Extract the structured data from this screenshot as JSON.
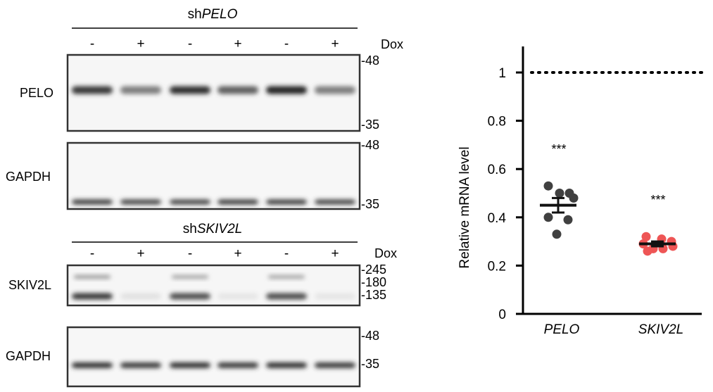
{
  "blot_top": {
    "title_prefix": "sh",
    "title_gene": "PELO",
    "lane_signs": [
      "-",
      "+",
      "-",
      "+",
      "-",
      "+"
    ],
    "treatment": "Dox",
    "panels": [
      {
        "label": "PELO",
        "markers": [
          "-48",
          "-35"
        ],
        "band_intensity": [
          0.9,
          0.55,
          0.95,
          0.7,
          1.0,
          0.55
        ]
      },
      {
        "label": "GAPDH",
        "markers": [
          "-48",
          "-35"
        ],
        "band_intensity": [
          0.9,
          0.85,
          0.85,
          0.9,
          0.9,
          0.85
        ]
      }
    ]
  },
  "blot_bottom": {
    "title_prefix": "sh",
    "title_gene": "SKIV2L",
    "lane_signs": [
      "-",
      "+",
      "-",
      "+",
      "-",
      "+"
    ],
    "treatment": "Dox",
    "panels": [
      {
        "label": "SKIV2L",
        "markers": [
          "-245",
          "-180",
          "-135"
        ],
        "band_intensity": [
          0.9,
          0.05,
          0.8,
          0.03,
          0.8,
          0.03
        ]
      },
      {
        "label": "GAPDH",
        "markers": [
          "-48",
          "-35"
        ],
        "band_intensity": [
          0.95,
          0.9,
          0.95,
          0.9,
          0.95,
          0.9
        ]
      }
    ]
  },
  "chart_data": {
    "type": "scatter",
    "ylabel": "Relative mRNA level",
    "ylim": [
      0,
      1.05
    ],
    "yticks": [
      "0",
      "0.2",
      "0.4",
      "0.6",
      "0.8",
      "1"
    ],
    "categories": [
      "PELO",
      "SKIV2L"
    ],
    "reference_line": 1,
    "series": [
      {
        "color": "#404040",
        "values": [
          0.53,
          0.5,
          0.5,
          0.48,
          0.4,
          0.39,
          0.33
        ],
        "mean": 0.45,
        "sem": 0.03,
        "significance": "***"
      },
      {
        "color": "#ee5555",
        "values": [
          0.32,
          0.31,
          0.3,
          0.29,
          0.28,
          0.27,
          0.27,
          0.26
        ],
        "mean": 0.29,
        "sem": 0.01,
        "significance": "***"
      }
    ]
  }
}
